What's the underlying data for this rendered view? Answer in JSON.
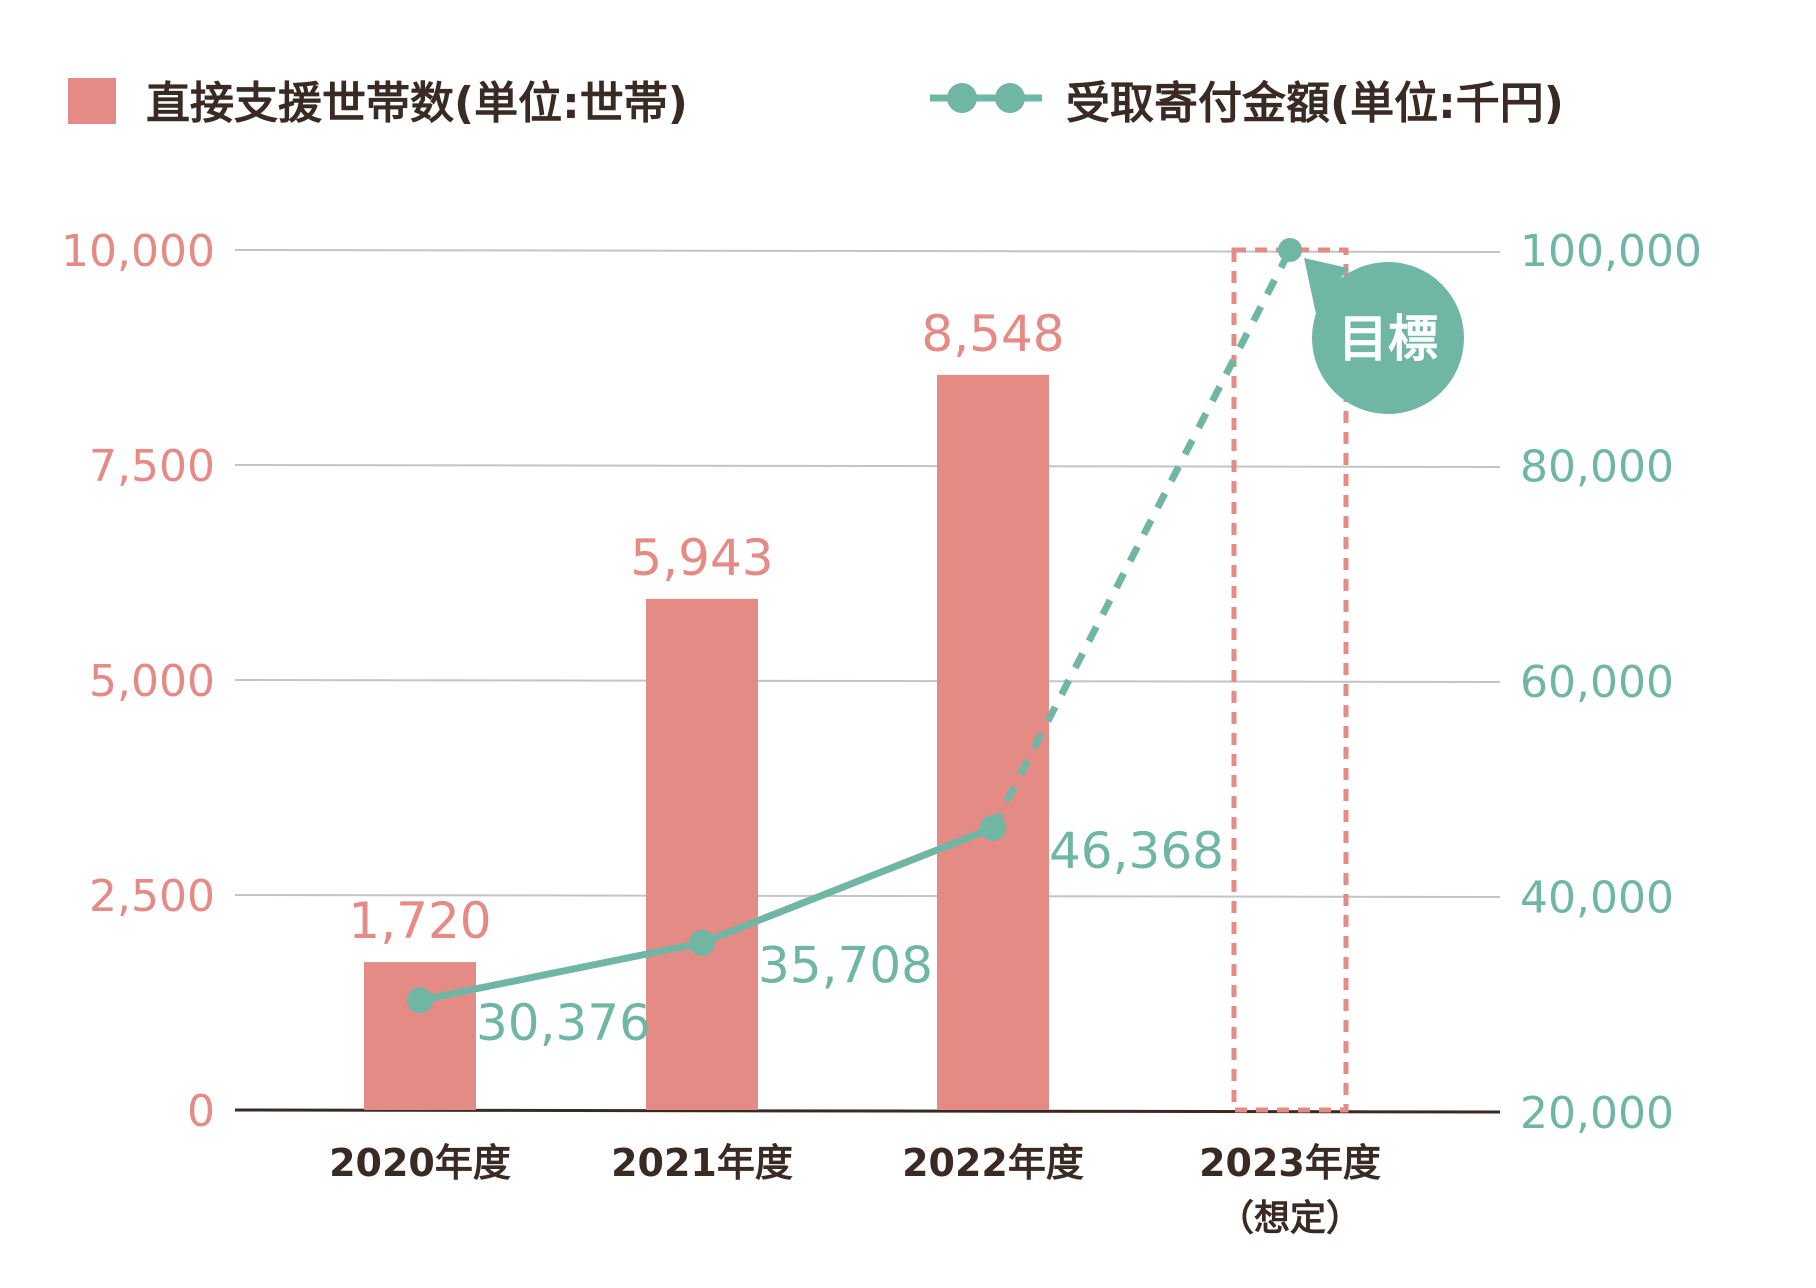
{
  "chart_data": {
    "type": "bar",
    "categories": [
      "2020年度",
      "2021年度",
      "2022年度",
      "2023年度"
    ],
    "category_sublabels": [
      "",
      "",
      "",
      "（想定）"
    ],
    "series": [
      {
        "name": "直接支援世帯数(単位:世帯)",
        "type": "bar",
        "axis": "left",
        "values": [
          1720,
          5943,
          8548,
          null
        ],
        "labels": [
          "1,720",
          "5,943",
          "8,548",
          ""
        ]
      },
      {
        "name": "受取寄付金額(単位:千円)",
        "type": "line",
        "axis": "right",
        "values": [
          30376,
          35708,
          46368,
          100000
        ],
        "labels": [
          "30,376",
          "35,708",
          "46,368",
          ""
        ],
        "projected_segment": "2022年度-2023年度"
      }
    ],
    "left_axis": {
      "ylim": [
        0,
        10000
      ],
      "ticks": [
        0,
        2500,
        5000,
        7500,
        10000
      ],
      "tick_labels": [
        "0",
        "2,500",
        "5,000",
        "7,500",
        "10,000"
      ]
    },
    "right_axis": {
      "ylim": [
        20000,
        100000
      ],
      "ticks": [
        20000,
        40000,
        60000,
        80000,
        100000
      ],
      "tick_labels": [
        "20,000",
        "40,000",
        "60,000",
        "80,000",
        "100,000"
      ]
    },
    "annotation": {
      "text": "目標",
      "category": "2023年度"
    },
    "grid": true,
    "legend_position": "top"
  },
  "colors": {
    "bar": "#e58b85",
    "line": "#6fb6a4",
    "grid": "#c4c4c4",
    "axis": "#3a2a24",
    "text_dark": "#3a2a24",
    "white": "#ffffff"
  }
}
